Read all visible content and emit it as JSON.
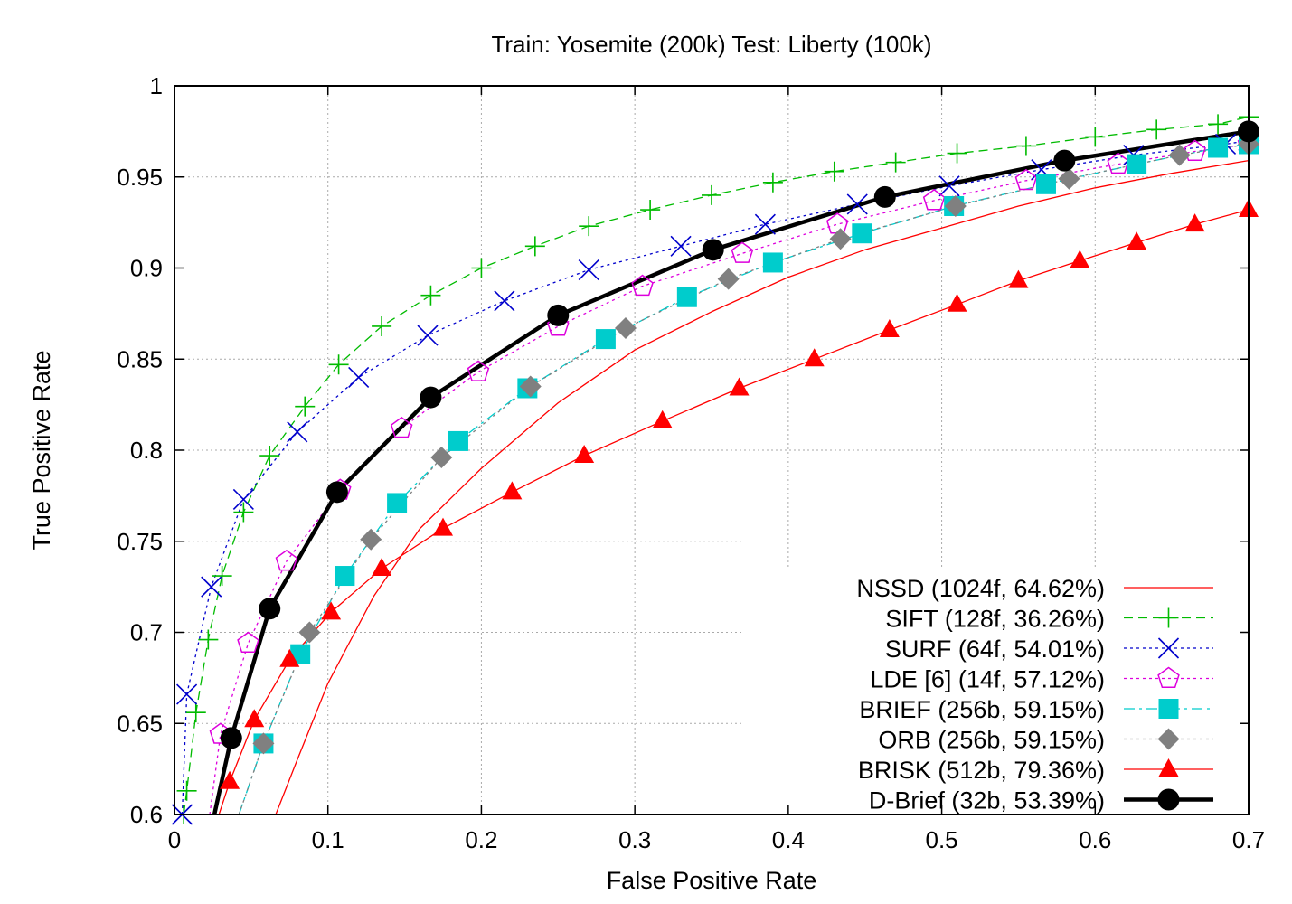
{
  "chart_data": {
    "type": "line",
    "title": "Train: Yosemite (200k) Test: Liberty (100k)",
    "xlabel": "False Positive Rate",
    "ylabel": "True Positive Rate",
    "xlim": [
      0,
      0.7
    ],
    "ylim": [
      0.6,
      1
    ],
    "grid": true,
    "legend_position": "bottom-right",
    "x_ticks": [
      {
        "value": 0,
        "label": "0"
      },
      {
        "value": 0.1,
        "label": "0.1"
      },
      {
        "value": 0.2,
        "label": "0.2"
      },
      {
        "value": 0.3,
        "label": "0.3"
      },
      {
        "value": 0.4,
        "label": "0.4"
      },
      {
        "value": 0.5,
        "label": "0.5"
      },
      {
        "value": 0.6,
        "label": "0.6"
      },
      {
        "value": 0.7,
        "label": "0.7"
      }
    ],
    "y_ticks": [
      {
        "value": 0.6,
        "label": "0.6"
      },
      {
        "value": 0.65,
        "label": "0.65"
      },
      {
        "value": 0.7,
        "label": "0.7"
      },
      {
        "value": 0.75,
        "label": "0.75"
      },
      {
        "value": 0.8,
        "label": "0.8"
      },
      {
        "value": 0.85,
        "label": "0.85"
      },
      {
        "value": 0.9,
        "label": "0.9"
      },
      {
        "value": 0.95,
        "label": "0.95"
      },
      {
        "value": 1,
        "label": "1"
      }
    ],
    "series": [
      {
        "name": "NSSD (1024f, 64.62%)",
        "color": "#ff0000",
        "marker": "none",
        "dash": "solid",
        "x": [
          0.066,
          0.08,
          0.1,
          0.13,
          0.16,
          0.2,
          0.25,
          0.3,
          0.35,
          0.4,
          0.45,
          0.5,
          0.55,
          0.6,
          0.65,
          0.7
        ],
        "y": [
          0.6,
          0.63,
          0.672,
          0.72,
          0.757,
          0.79,
          0.826,
          0.855,
          0.876,
          0.895,
          0.91,
          0.922,
          0.934,
          0.944,
          0.952,
          0.959
        ]
      },
      {
        "name": "SIFT (128f, 36.26%)",
        "color": "#00bb00",
        "marker": "plus",
        "dash": "dashed",
        "x": [
          0.006,
          0.008,
          0.014,
          0.022,
          0.031,
          0.045,
          0.062,
          0.085,
          0.107,
          0.135,
          0.167,
          0.2,
          0.235,
          0.27,
          0.31,
          0.35,
          0.39,
          0.43,
          0.47,
          0.51,
          0.555,
          0.6,
          0.64,
          0.68,
          0.7
        ],
        "y": [
          0.6,
          0.613,
          0.656,
          0.696,
          0.731,
          0.766,
          0.797,
          0.824,
          0.847,
          0.868,
          0.885,
          0.9,
          0.912,
          0.923,
          0.932,
          0.94,
          0.947,
          0.953,
          0.958,
          0.963,
          0.967,
          0.972,
          0.976,
          0.979,
          0.983
        ]
      },
      {
        "name": "SURF (64f, 54.01%)",
        "color": "#0000cc",
        "marker": "x",
        "dash": "dotted",
        "x": [
          0.005,
          0.008,
          0.024,
          0.045,
          0.08,
          0.12,
          0.165,
          0.215,
          0.27,
          0.33,
          0.385,
          0.445,
          0.505,
          0.565,
          0.625,
          0.685,
          0.7
        ],
        "y": [
          0.6,
          0.666,
          0.725,
          0.773,
          0.81,
          0.84,
          0.863,
          0.882,
          0.899,
          0.912,
          0.924,
          0.935,
          0.945,
          0.954,
          0.962,
          0.968,
          0.97
        ]
      },
      {
        "name": "LDE [6] (14f, 57.12%)",
        "color": "#dd00dd",
        "marker": "pentagon",
        "dash": "dotted",
        "x": [
          0.023,
          0.03,
          0.048,
          0.073,
          0.108,
          0.148,
          0.198,
          0.25,
          0.305,
          0.37,
          0.432,
          0.495,
          0.555,
          0.615,
          0.665,
          0.7
        ],
        "y": [
          0.6,
          0.644,
          0.694,
          0.739,
          0.778,
          0.812,
          0.843,
          0.868,
          0.89,
          0.908,
          0.924,
          0.937,
          0.948,
          0.957,
          0.964,
          0.968
        ]
      },
      {
        "name": "BRIEF (256b, 59.15%)",
        "color": "#00cccc",
        "marker": "square",
        "dash": "dashdot",
        "x": [
          0.042,
          0.058,
          0.082,
          0.111,
          0.145,
          0.185,
          0.23,
          0.281,
          0.334,
          0.39,
          0.448,
          0.508,
          0.568,
          0.627,
          0.68,
          0.7
        ],
        "y": [
          0.6,
          0.639,
          0.688,
          0.731,
          0.771,
          0.805,
          0.834,
          0.861,
          0.884,
          0.903,
          0.919,
          0.934,
          0.946,
          0.957,
          0.966,
          0.968
        ]
      },
      {
        "name": "ORB (256b, 59.15%)",
        "color": "#808080",
        "marker": "diamond",
        "dash": "dotted",
        "x": [
          0.042,
          0.058,
          0.088,
          0.128,
          0.174,
          0.232,
          0.294,
          0.361,
          0.434,
          0.509,
          0.583,
          0.655,
          0.7
        ],
        "y": [
          0.6,
          0.639,
          0.7,
          0.751,
          0.796,
          0.835,
          0.867,
          0.894,
          0.916,
          0.934,
          0.949,
          0.962,
          0.968
        ]
      },
      {
        "name": "BRISK (512b, 79.36%)",
        "color": "#ff0000",
        "marker": "triangle",
        "dash": "solid",
        "x": [
          0.029,
          0.036,
          0.052,
          0.075,
          0.102,
          0.135,
          0.175,
          0.22,
          0.267,
          0.318,
          0.368,
          0.417,
          0.466,
          0.51,
          0.55,
          0.59,
          0.627,
          0.665,
          0.7
        ],
        "y": [
          0.6,
          0.618,
          0.652,
          0.685,
          0.711,
          0.735,
          0.757,
          0.777,
          0.797,
          0.816,
          0.834,
          0.85,
          0.866,
          0.88,
          0.893,
          0.904,
          0.914,
          0.924,
          0.932
        ]
      },
      {
        "name": "D-Brief (32b, 53.39%)",
        "color": "#000000",
        "marker": "circle",
        "dash": "solid",
        "x": [
          0.026,
          0.037,
          0.062,
          0.106,
          0.167,
          0.25,
          0.351,
          0.463,
          0.58,
          0.7
        ],
        "y": [
          0.6,
          0.642,
          0.713,
          0.777,
          0.829,
          0.874,
          0.91,
          0.939,
          0.959,
          0.975
        ]
      }
    ]
  }
}
